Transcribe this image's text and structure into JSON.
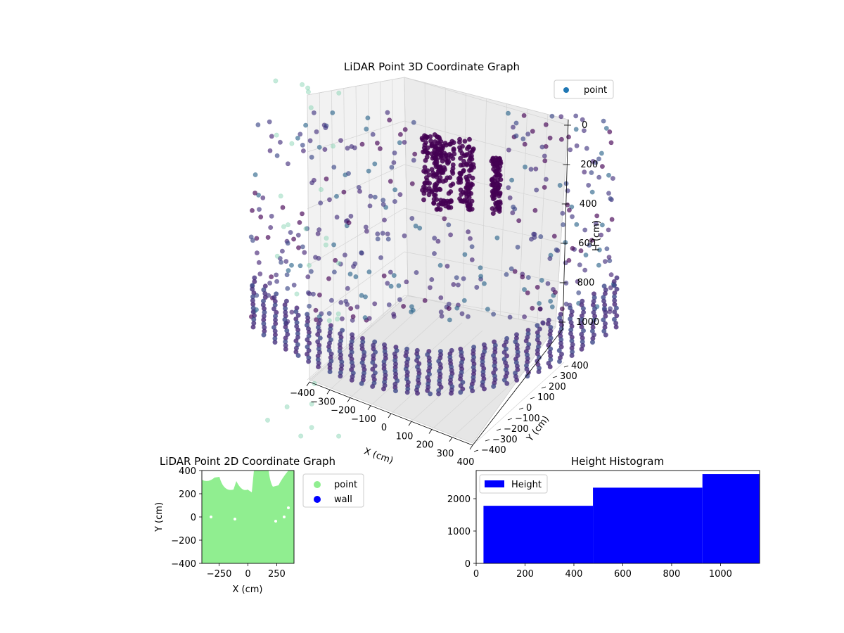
{
  "chart_data": [
    {
      "type": "scatter",
      "projection": "3d",
      "title": "LiDAR Point 3D Coordinate Graph",
      "xlabel": "X (cm)",
      "ylabel": "Y (cm)",
      "zlabel": "H (cm)",
      "x_ticks": [
        "−400",
        "−300",
        "−200",
        "−100",
        "0",
        "100",
        "200",
        "300",
        "400"
      ],
      "y_ticks": [
        "−400",
        "−300",
        "−200",
        "−100",
        "0",
        "100",
        "200",
        "300",
        "400"
      ],
      "z_ticks": [
        "0",
        "200",
        "400",
        "600",
        "800",
        "1000"
      ],
      "xlim": [
        -400,
        400
      ],
      "ylim": [
        -400,
        400
      ],
      "zlim": [
        0,
        1000
      ],
      "z_inverted": true,
      "grid": true,
      "legend": {
        "position": "top-right",
        "entries": [
          "point"
        ]
      },
      "series": [
        {
          "name": "point",
          "color": "#1f77b4",
          "colormap": "viridis"
        }
      ]
    },
    {
      "type": "scatter",
      "title": "LiDAR Point 2D Coordinate Graph",
      "xlabel": "X (cm)",
      "ylabel": "Y (cm)",
      "x_ticks": [
        "−250",
        "0",
        "250"
      ],
      "y_ticks": [
        "400",
        "200",
        "0",
        "−200",
        "−400"
      ],
      "xlim": [
        -400,
        400
      ],
      "ylim": [
        -400,
        400
      ],
      "legend": {
        "position": "outside-right",
        "entries": [
          "point",
          "wall"
        ]
      },
      "series": [
        {
          "name": "point",
          "color": "#90ee90"
        },
        {
          "name": "wall",
          "color": "#0000ff"
        }
      ]
    },
    {
      "type": "bar",
      "subtype": "histogram",
      "title": "Height Histogram",
      "x_ticks": [
        "0",
        "200",
        "400",
        "600",
        "800",
        "1000"
      ],
      "y_ticks": [
        "0",
        "1000",
        "2000"
      ],
      "xlim": [
        0,
        1160
      ],
      "ylim": [
        0,
        2870
      ],
      "bins": [
        {
          "start": 30,
          "end": 478,
          "count": 1780
        },
        {
          "start": 478,
          "end": 926,
          "count": 2340
        },
        {
          "start": 926,
          "end": 1160,
          "count": 2760
        }
      ],
      "legend": {
        "position": "top-left",
        "entries": [
          "Height"
        ]
      },
      "series": [
        {
          "name": "Height",
          "color": "#0000ff"
        }
      ]
    }
  ]
}
